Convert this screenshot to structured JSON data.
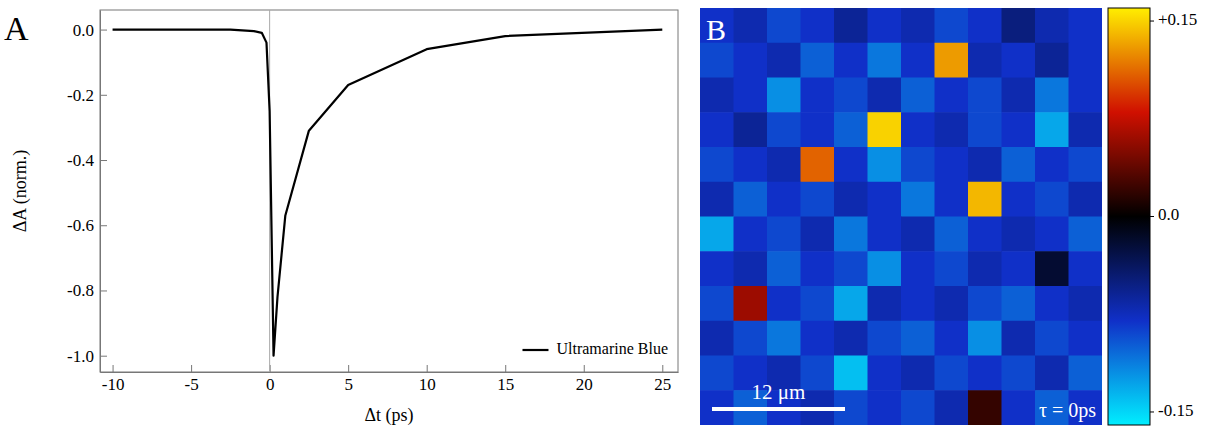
{
  "chart_data": [
    {
      "type": "line",
      "panel_label": "A",
      "x_label": "Δt (ps)",
      "y_label": "ΔA (norm.)",
      "x": [
        -10,
        -5,
        -2.5,
        -1,
        -0.5,
        -0.2,
        0,
        0.25,
        0.5,
        1,
        2.5,
        5,
        10,
        15,
        25
      ],
      "series": [
        {
          "name": "Ultramarine Blue",
          "color": "#000000",
          "values": [
            0,
            0,
            0,
            -0.005,
            -0.01,
            -0.04,
            -0.25,
            -1.0,
            -0.82,
            -0.57,
            -0.31,
            -0.17,
            -0.06,
            -0.02,
            0
          ]
        }
      ],
      "xlim": [
        -10.8,
        26
      ],
      "ylim": [
        -1.05,
        0.06
      ],
      "xticks": [
        -10,
        -5,
        0,
        5,
        10,
        15,
        20,
        25
      ],
      "yticks": [
        {
          "value": 0,
          "label": "0.0"
        },
        {
          "value": -0.2,
          "label": "-0.2"
        },
        {
          "value": -0.4,
          "label": "-0.4"
        },
        {
          "value": -0.6,
          "label": "-0.6"
        },
        {
          "value": -0.8,
          "label": "-0.8"
        },
        {
          "value": -1.0,
          "label": "-1.0"
        }
      ],
      "legend": "bottom-right"
    },
    {
      "type": "heatmap",
      "panel_label": "B",
      "annotations": [
        "12 μm",
        "τ = 0ps"
      ],
      "tick_labels": false,
      "cells": [
        [
          -0.08,
          -0.07,
          -0.09,
          -0.08,
          -0.06,
          -0.08,
          -0.07,
          -0.09,
          -0.08,
          -0.05,
          -0.07,
          -0.08
        ],
        [
          -0.09,
          -0.08,
          -0.07,
          -0.1,
          -0.08,
          -0.11,
          -0.08,
          0.13,
          -0.07,
          -0.08,
          -0.06,
          -0.08
        ],
        [
          -0.07,
          -0.08,
          -0.12,
          -0.08,
          -0.09,
          -0.07,
          -0.1,
          -0.08,
          -0.09,
          -0.07,
          -0.11,
          -0.08
        ],
        [
          -0.08,
          -0.06,
          -0.09,
          -0.08,
          -0.1,
          0.15,
          -0.08,
          -0.07,
          -0.09,
          -0.08,
          -0.13,
          -0.07
        ],
        [
          -0.09,
          -0.08,
          -0.07,
          0.11,
          -0.08,
          -0.12,
          -0.09,
          -0.08,
          -0.07,
          -0.1,
          -0.08,
          -0.09
        ],
        [
          -0.07,
          -0.1,
          -0.08,
          -0.09,
          -0.07,
          -0.08,
          -0.11,
          -0.08,
          0.14,
          -0.08,
          -0.09,
          -0.07
        ],
        [
          -0.13,
          -0.08,
          -0.09,
          -0.07,
          -0.11,
          -0.08,
          -0.07,
          -0.1,
          -0.08,
          -0.07,
          -0.08,
          -0.1
        ],
        [
          -0.08,
          -0.07,
          -0.1,
          -0.08,
          -0.09,
          -0.12,
          -0.08,
          -0.09,
          -0.07,
          -0.08,
          -0.02,
          -0.08
        ],
        [
          -0.09,
          0.06,
          -0.08,
          -0.09,
          -0.13,
          -0.07,
          -0.08,
          -0.07,
          -0.09,
          -0.1,
          -0.08,
          -0.07
        ],
        [
          -0.07,
          -0.09,
          -0.11,
          -0.08,
          -0.07,
          -0.09,
          -0.1,
          -0.08,
          -0.12,
          -0.07,
          -0.09,
          -0.08
        ],
        [
          -0.09,
          -0.08,
          -0.07,
          -0.09,
          -0.14,
          -0.08,
          -0.07,
          -0.09,
          -0.08,
          -0.09,
          -0.07,
          -0.1
        ],
        [
          -0.08,
          -0.1,
          -0.08,
          -0.07,
          -0.09,
          -0.08,
          -0.09,
          -0.07,
          0.02,
          -0.08,
          -0.1,
          -0.08
        ]
      ],
      "color_range": [
        -0.16,
        0.16
      ],
      "color_ticks": [
        {
          "value": 0.15,
          "label": "+0.15"
        },
        {
          "value": 0,
          "label": "0.0"
        },
        {
          "value": -0.15,
          "label": "-0.15"
        }
      ]
    }
  ]
}
